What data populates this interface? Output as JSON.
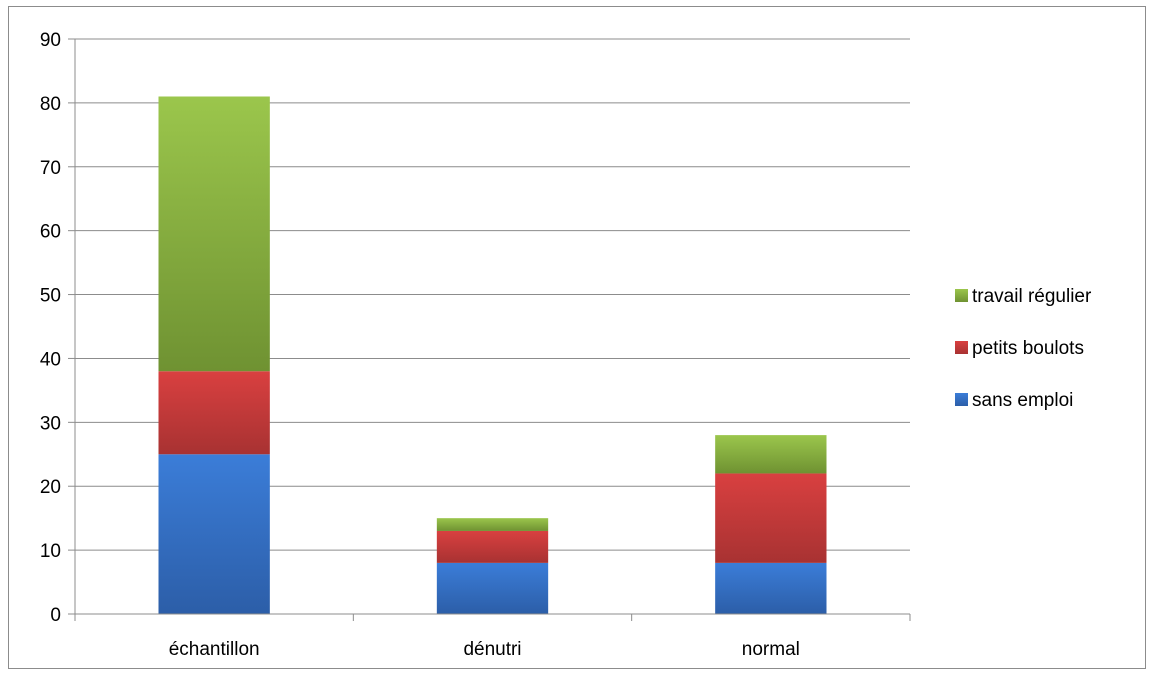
{
  "chart_data": {
    "type": "bar",
    "stacked": true,
    "categories": [
      "échantillon",
      "dénutri",
      "normal"
    ],
    "series": [
      {
        "name": "sans emploi",
        "values": [
          25,
          8,
          8
        ],
        "color": "#3b7dd8",
        "color_dark": "#2c5ea8"
      },
      {
        "name": "petits boulots",
        "values": [
          13,
          5,
          14
        ],
        "color": "#d94040",
        "color_dark": "#a83232"
      },
      {
        "name": "travail régulier",
        "values": [
          43,
          2,
          6
        ],
        "color": "#9bc64c",
        "color_dark": "#6f9232"
      }
    ],
    "ylim": [
      0,
      90
    ],
    "yticks": [
      0,
      10,
      20,
      30,
      40,
      50,
      60,
      70,
      80,
      90
    ],
    "grid": true,
    "legend": "right",
    "title": "",
    "xlabel": "",
    "ylabel": ""
  }
}
